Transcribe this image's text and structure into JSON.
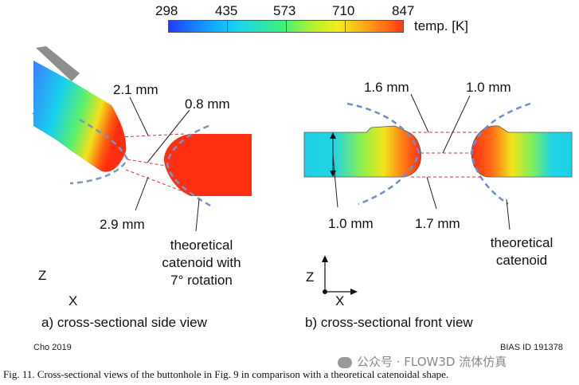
{
  "colorbar": {
    "ticks": [
      "298",
      "435",
      "573",
      "710",
      "847"
    ],
    "unit_label": "temp. [K]",
    "colors": [
      "#1f3dff",
      "#17c8ff",
      "#3cf07a",
      "#f2ee1a",
      "#ff3a12"
    ]
  },
  "panel_a": {
    "dim_top": "2.1 mm",
    "dim_gap": "0.8 mm",
    "dim_bottom": "2.9 mm",
    "annotation": [
      "theoretical",
      "catenoid with",
      "7° rotation"
    ],
    "axis_z": "Z",
    "axis_x": "X",
    "caption": "a) cross-sectional side view"
  },
  "panel_b": {
    "dim_top_left": "1.6 mm",
    "dim_top_right": "1.0 mm",
    "dim_bottom_left": "1.0 mm",
    "dim_bottom_mid": "1.7 mm",
    "annotation": [
      "theoretical",
      "catenoid"
    ],
    "axis_z": "Z",
    "axis_x": "X",
    "caption": "b) cross-sectional front view"
  },
  "credit_left": "Cho 2019",
  "credit_right": "BIAS ID 191378",
  "watermark": "公众号 · FLOW3D 流体仿真",
  "figure_caption": "Fig. 11. Cross-sectional views of the buttonhole in Fig. 9 in comparison with a theoretical catenoidal shape."
}
